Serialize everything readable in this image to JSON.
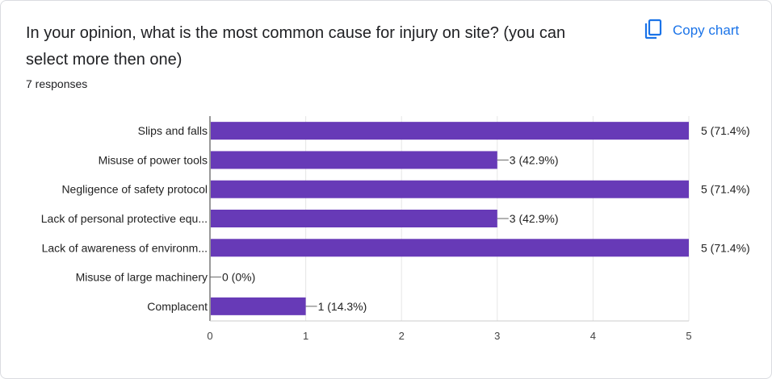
{
  "question": {
    "title": "In your opinion, what is the most common cause for injury on site? (you can select more then one)",
    "response_count": "7 responses"
  },
  "toolbar": {
    "copy_label": "Copy chart",
    "copy_icon": "copy-icon"
  },
  "colors": {
    "bar": "#673ab7",
    "accent": "#1a73e8"
  },
  "chart_data": {
    "type": "bar",
    "orientation": "horizontal",
    "categories": [
      "Slips and falls",
      "Misuse of power tools",
      "Negligence of safety protocol",
      "Lack of personal protective equ...",
      "Lack of awareness of environm...",
      "Misuse of large machinery",
      "Complacent"
    ],
    "values": [
      5,
      3,
      5,
      3,
      5,
      0,
      1
    ],
    "value_labels": [
      "5 (71.4%)",
      "3 (42.9%)",
      "5 (71.4%)",
      "3 (42.9%)",
      "5 (71.4%)",
      "0 (0%)",
      "1 (14.3%)"
    ],
    "xticks": [
      "0",
      "1",
      "2",
      "3",
      "4",
      "5"
    ],
    "xlim": [
      0,
      5
    ],
    "grid": true
  }
}
